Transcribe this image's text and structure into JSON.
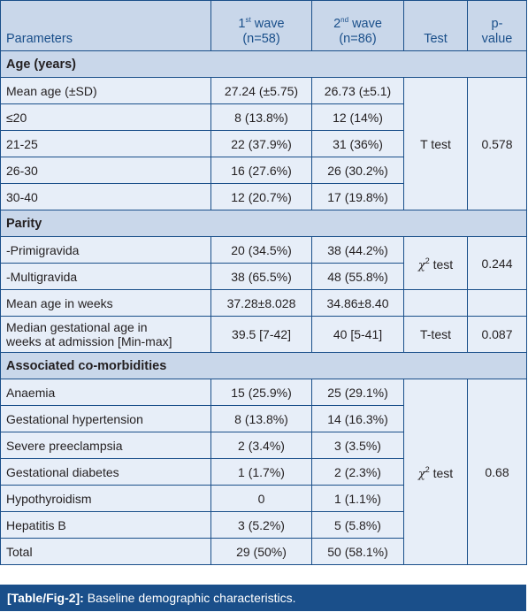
{
  "columns": {
    "parameters": "Parameters",
    "wave1": {
      "n": "1",
      "sup": "st",
      "rest": " wave",
      "count": "(n=58)"
    },
    "wave2": {
      "n": "2",
      "sup": "nd",
      "rest": " wave",
      "count": "(n=86)"
    },
    "test": "Test",
    "pvalue_line1": "p-",
    "pvalue_line2": "value"
  },
  "age": {
    "heading": "Age (years)",
    "rows": [
      {
        "label": "Mean age (±SD)",
        "w1": "27.24 (±5.75)",
        "w2": "26.73 (±5.1)"
      },
      {
        "label": "≤20",
        "w1": "8  (13.8%)",
        "w2": "12  (14%)"
      },
      {
        "label": "21-25",
        "w1": "22  (37.9%)",
        "w2": "31  (36%)"
      },
      {
        "label": "26-30",
        "w1": "16  (27.6%)",
        "w2": "26  (30.2%)"
      },
      {
        "label": "30-40",
        "w1": "12  (20.7%)",
        "w2": "17  (19.8%)"
      }
    ],
    "test": "T test",
    "p": "0.578"
  },
  "parity": {
    "heading": "Parity",
    "rows": [
      {
        "label": "-Primigravida",
        "w1": "20  (34.5%)",
        "w2": "38  (44.2%)"
      },
      {
        "label": "-Multigravida",
        "w1": "38  (65.5%)",
        "w2": "48  (55.8%)"
      }
    ],
    "test_symbol": "χ",
    "test_sup": "2",
    "test_rest": " test",
    "p": "0.244",
    "mean_weeks": {
      "label": "Mean age in weeks",
      "w1": "37.28±8.028",
      "w2": "34.86±8.40"
    },
    "median": {
      "label_line1": "Median gestational age in",
      "label_line2": "weeks at admission [Min-max]",
      "w1": "39.5  [7-42]",
      "w2": "40  [5-41]",
      "test": "T-test",
      "p": "0.087"
    }
  },
  "comorbid": {
    "heading": "Associated co-morbidities",
    "rows": [
      {
        "label": "Anaemia",
        "w1": "15  (25.9%)",
        "w2": "25  (29.1%)"
      },
      {
        "label": "Gestational hypertension",
        "w1": "8  (13.8%)",
        "w2": "14  (16.3%)"
      },
      {
        "label": "Severe preeclampsia",
        "w1": "2  (3.4%)",
        "w2": "3  (3.5%)"
      },
      {
        "label": "Gestational diabetes",
        "w1": "1  (1.7%)",
        "w2": "2  (2.3%)"
      },
      {
        "label": "Hypothyroidism",
        "w1": "0",
        "w2": "1  (1.1%)"
      },
      {
        "label": "Hepatitis B",
        "w1": "3  (5.2%)",
        "w2": "5  (5.8%)"
      },
      {
        "label": "Total",
        "w1": "29  (50%)",
        "w2": "50  (58.1%)"
      }
    ],
    "test_symbol": "χ",
    "test_sup": "2",
    "test_rest": " test",
    "p": "0.68"
  },
  "caption": {
    "ref": "[Table/Fig-2]:",
    "text": " Baseline demographic characteristics."
  },
  "colors": {
    "border": "#1a4f8a",
    "header_bg": "#c9d7ea",
    "row_bg": "#e7eef8",
    "caption_bg": "#1a4f8a"
  }
}
